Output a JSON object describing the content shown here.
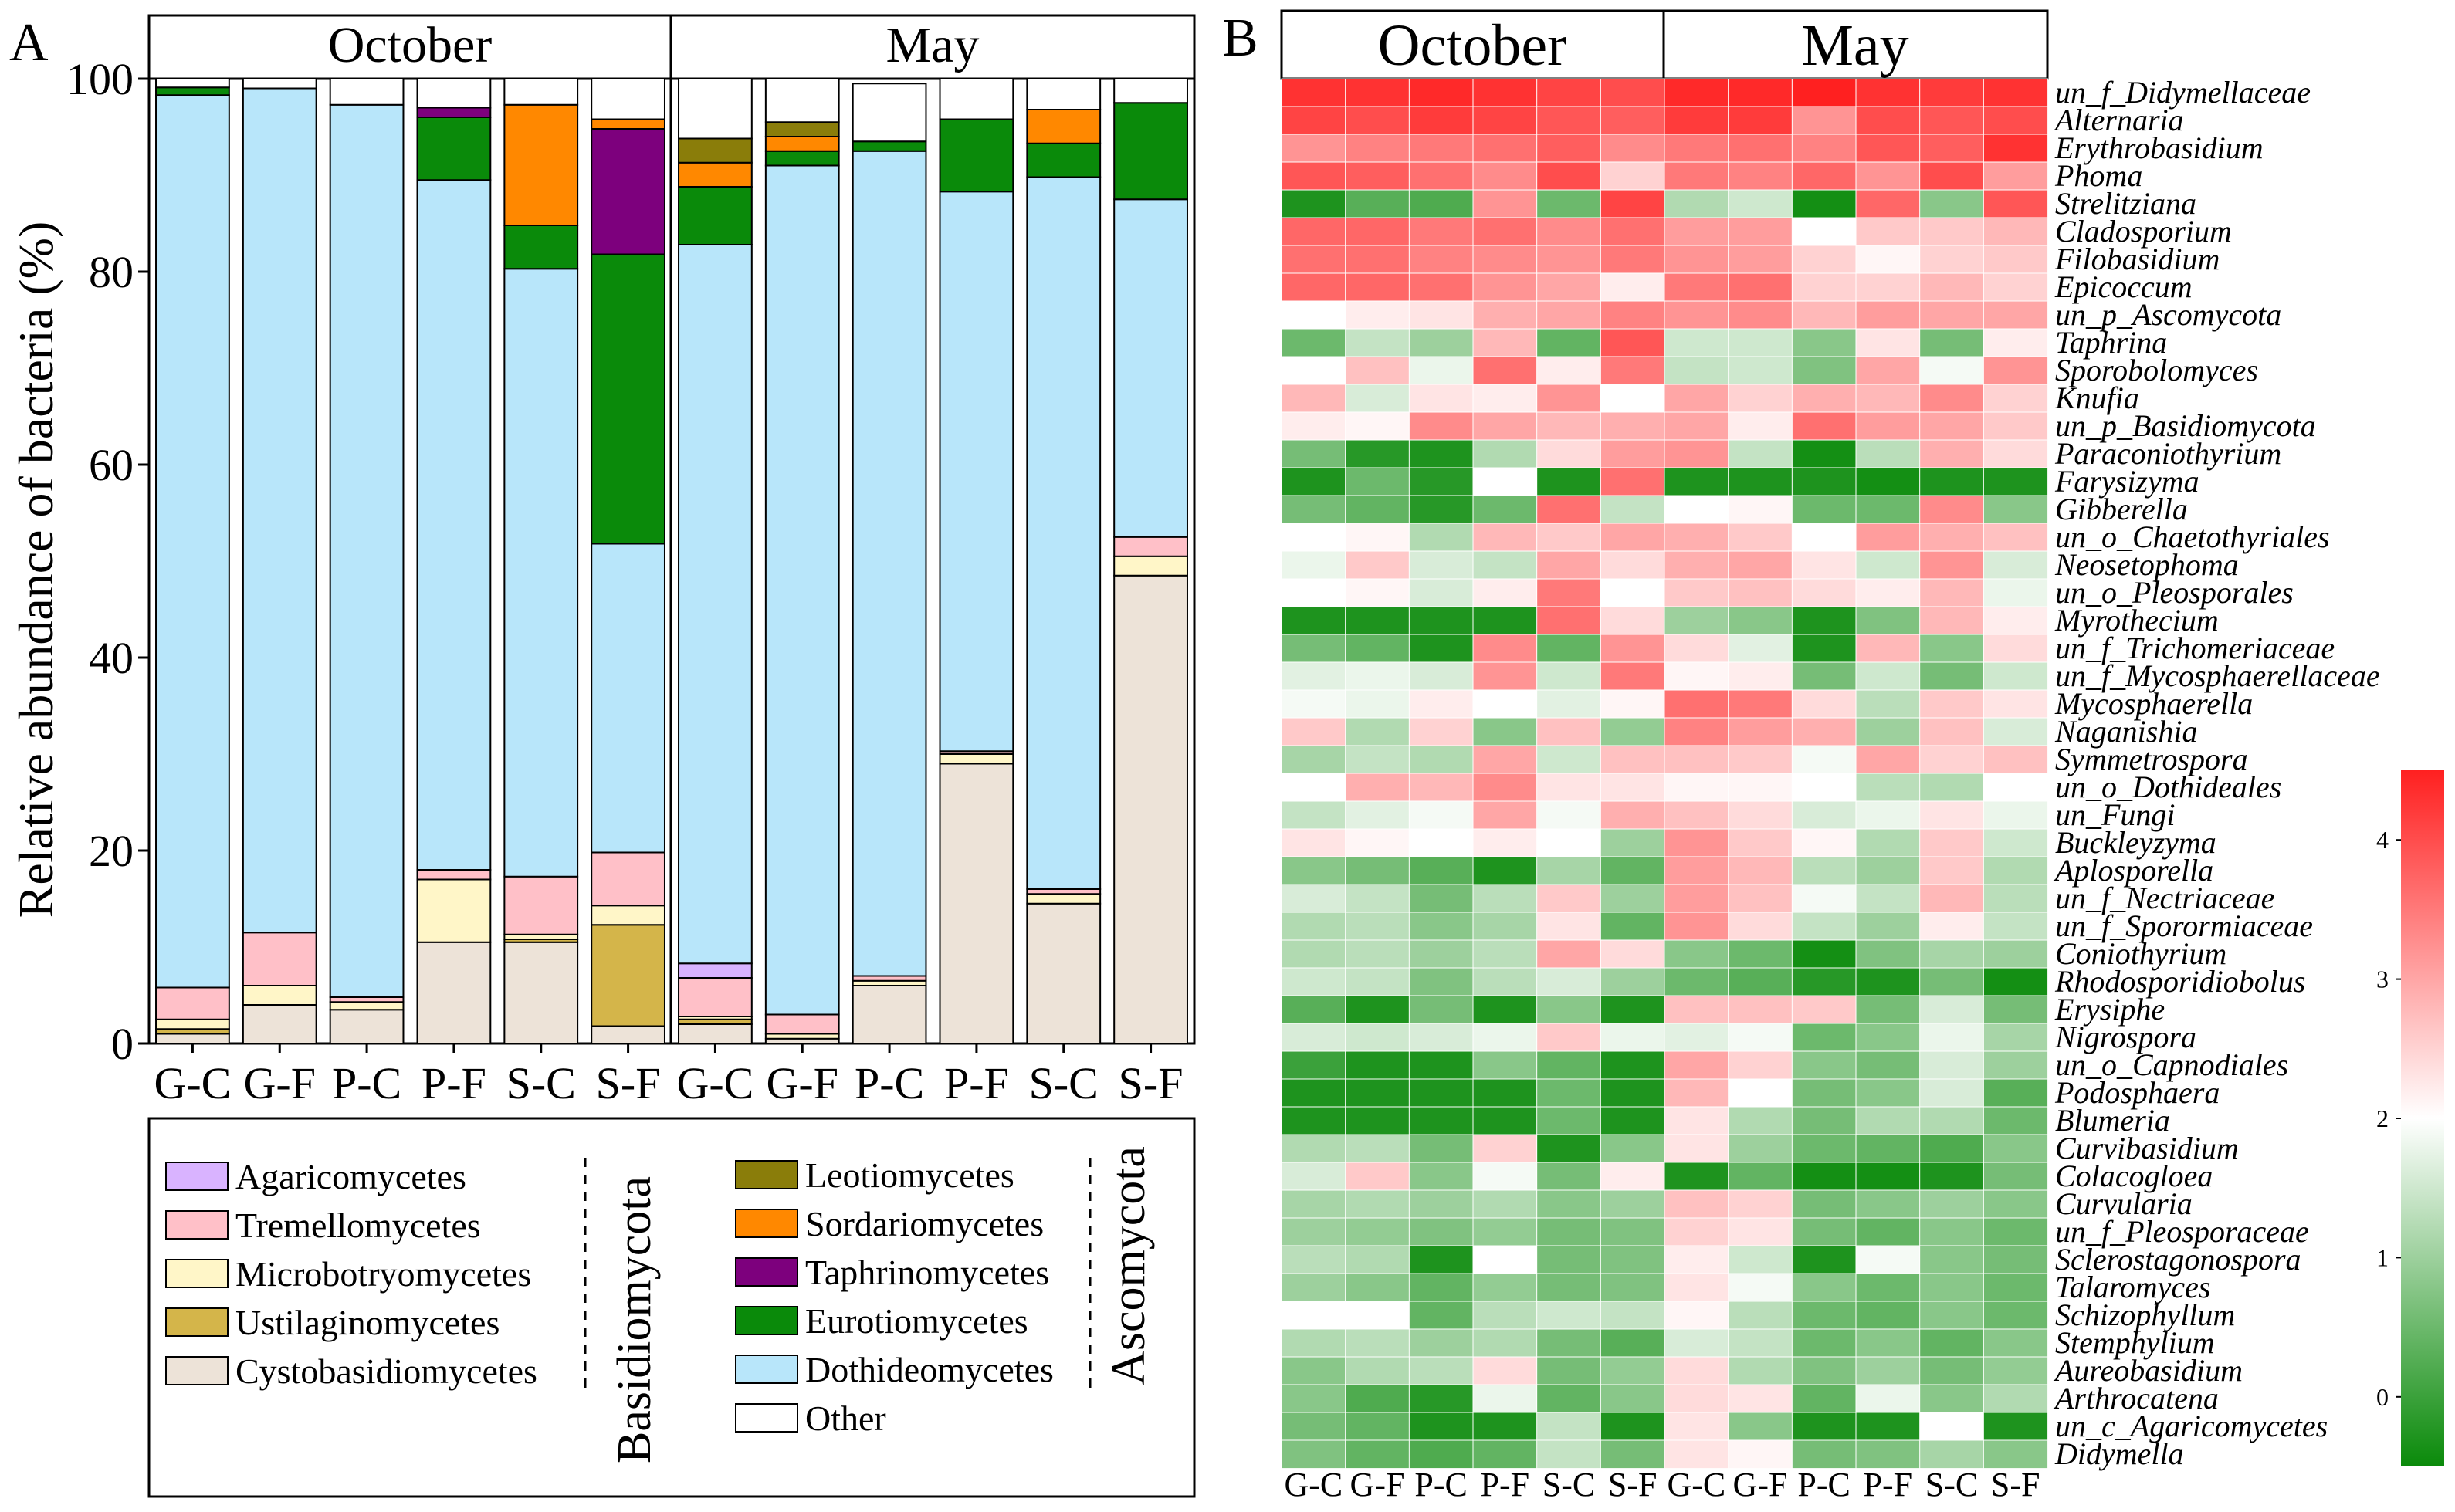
{
  "panel_a": {
    "label": "A",
    "groups": [
      "October",
      "May"
    ],
    "ylabel": "Relative abundance of bacteria (%)",
    "yticks": [
      "0",
      "20",
      "40",
      "60",
      "80",
      "100"
    ],
    "legend": {
      "phylum_labels": [
        "Basidiomycota",
        "Ascomycota"
      ],
      "basidiomycota": [
        {
          "name": "Agaricomycetes",
          "color": "#d9b3ff"
        },
        {
          "name": "Tremellomycetes",
          "color": "#ffc0c8"
        },
        {
          "name": "Microbotryomycetes",
          "color": "#fff6c8"
        },
        {
          "name": "Ustilaginomycetes",
          "color": "#d4b54a"
        },
        {
          "name": "Cystobasidiomycetes",
          "color": "#ede3d8"
        }
      ],
      "ascomycota": [
        {
          "name": "Leotiomycetes",
          "color": "#8a7d0a"
        },
        {
          "name": "Sordariomycetes",
          "color": "#ff8800"
        },
        {
          "name": "Taphrinomycetes",
          "color": "#7d007d"
        },
        {
          "name": "Eurotiomycetes",
          "color": "#0a8a0a"
        },
        {
          "name": "Dothideomycetes",
          "color": "#b8e6fa"
        },
        {
          "name": "Other",
          "color": "#ffffff"
        }
      ]
    }
  },
  "chart_data": [
    {
      "type": "bar",
      "stacked": true,
      "ylim": [
        0,
        100
      ],
      "ylabel": "Relative abundance of bacteria (%)",
      "categories": [
        "G-C",
        "G-F",
        "P-C",
        "P-F",
        "S-C",
        "S-F",
        "G-C",
        "G-F",
        "P-C",
        "P-F",
        "S-C",
        "S-F"
      ],
      "groups": [
        {
          "name": "October",
          "categories": [
            0,
            5
          ]
        },
        {
          "name": "May",
          "categories": [
            6,
            11
          ]
        }
      ],
      "series": [
        {
          "name": "Cystobasidiomycetes",
          "color": "#ede3d8",
          "values": [
            1,
            4,
            3.5,
            10.5,
            10.5,
            1.8,
            2,
            0.5,
            6,
            29,
            14.5,
            48.5
          ]
        },
        {
          "name": "Ustilaginomycetes",
          "color": "#d4b54a",
          "values": [
            0.5,
            0,
            0,
            0,
            0.3,
            10.5,
            0.5,
            0,
            0,
            0,
            0,
            0
          ]
        },
        {
          "name": "Microbotryomycetes",
          "color": "#fff6c8",
          "values": [
            1,
            2,
            0.8,
            6.5,
            0.5,
            2,
            0.3,
            0.5,
            0.5,
            1,
            1,
            2
          ]
        },
        {
          "name": "Tremellomycetes",
          "color": "#ffc0c8",
          "values": [
            3.3,
            5.5,
            0.5,
            1,
            6,
            5.5,
            4,
            2,
            0.5,
            0.3,
            0.5,
            2
          ]
        },
        {
          "name": "Agaricomycetes",
          "color": "#d9b3ff",
          "values": [
            0,
            0,
            0,
            0,
            0,
            0,
            1.5,
            0,
            0,
            0,
            0,
            0
          ]
        },
        {
          "name": "Dothideomycetes",
          "color": "#b8e6fa",
          "values": [
            92.5,
            87.5,
            92.5,
            71.5,
            63,
            32,
            74.5,
            88,
            85.5,
            58,
            73.8,
            35
          ]
        },
        {
          "name": "Eurotiomycetes",
          "color": "#0a8a0a",
          "values": [
            0.8,
            0,
            0,
            6.5,
            4.5,
            30,
            6,
            1.5,
            1,
            7.5,
            3.5,
            10
          ]
        },
        {
          "name": "Taphrinomycetes",
          "color": "#7d007d",
          "values": [
            0,
            0,
            0,
            1,
            0,
            13,
            0,
            0,
            0,
            0,
            0,
            0
          ]
        },
        {
          "name": "Sordariomycetes",
          "color": "#ff8800",
          "values": [
            0,
            0,
            0,
            0,
            12.5,
            1,
            2.5,
            1.5,
            0,
            0,
            3.5,
            0
          ]
        },
        {
          "name": "Leotiomycetes",
          "color": "#8a7d0a",
          "values": [
            0,
            0,
            0,
            0,
            0,
            0,
            2.5,
            1.5,
            0,
            0,
            0,
            0
          ]
        },
        {
          "name": "Other",
          "color": "#ffffff",
          "values": [
            0.9,
            1,
            2.7,
            3,
            2.7,
            4.2,
            6.2,
            4.5,
            6,
            4.2,
            3.2,
            2.5
          ]
        }
      ]
    },
    {
      "type": "heatmap",
      "label": "B",
      "groups": [
        "October",
        "May"
      ],
      "columns": [
        "G-C",
        "G-F",
        "P-C",
        "P-F",
        "S-C",
        "S-F",
        "G-C",
        "G-F",
        "P-C",
        "P-F",
        "S-C",
        "S-F"
      ],
      "rows": [
        "un_f_Didymellaceae",
        "Alternaria",
        "Erythrobasidium",
        "Phoma",
        "Strelitziana",
        "Cladosporium",
        "Filobasidium",
        "Epicoccum",
        "un_p_Ascomycota",
        "Taphrina",
        "Sporobolomyces",
        "Knufia",
        "un_p_Basidiomycota",
        "Paraconiothyrium",
        "Farysizyma",
        "Gibberella",
        "un_o_Chaetothyriales",
        "Neosetophoma",
        "un_o_Pleosporales",
        "Myrothecium",
        "un_f_Trichomeriaceae",
        "un_f_Mycosphaerellaceae",
        "Mycosphaerella",
        "Naganishia",
        "Symmetrospora",
        "un_o_Dothideales",
        "un_Fungi",
        "Buckleyzyma",
        "Aplosporella",
        "un_f_Nectriaceae",
        "un_f_Sporormiaceae",
        "Coniothyrium",
        "Rhodosporidiobolus",
        "Erysiphe",
        "Nigrospora",
        "un_o_Capnodiales",
        "Podosphaera",
        "Blumeria",
        "Curvibasidium",
        "Colacogloea",
        "Curvularia",
        "un_f_Pleosporaceae",
        "Sclerostagonospora",
        "Talaromyces",
        "Schizophyllum",
        "Stemphylium",
        "Aureobasidium",
        "Arthrocatena",
        "un_c_Agaricomycetes",
        "Didymella"
      ],
      "scale": {
        "min": -0.5,
        "max": 4.5,
        "ticks": [
          0,
          1,
          2,
          3,
          4
        ],
        "colors": {
          "low": "#0a8a0a",
          "mid": "#ffffff",
          "high": "#ff2020"
        }
      },
      "values": [
        [
          4.3,
          4.3,
          4.4,
          4.3,
          4.1,
          4.0,
          4.4,
          4.4,
          4.5,
          4.3,
          4.2,
          4.3
        ],
        [
          4.1,
          4.0,
          4.2,
          4.1,
          3.9,
          3.8,
          4.2,
          4.2,
          3.2,
          4.0,
          3.9,
          4.0
        ],
        [
          3.2,
          3.4,
          3.5,
          3.6,
          3.8,
          3.3,
          3.5,
          3.6,
          3.4,
          3.9,
          3.8,
          4.3
        ],
        [
          3.9,
          3.8,
          3.6,
          3.3,
          4.0,
          2.5,
          3.5,
          3.4,
          3.7,
          3.2,
          4.0,
          3.1
        ],
        [
          -0.3,
          0.3,
          0.2,
          3.2,
          0.5,
          4.1,
          1.2,
          1.5,
          -0.4,
          3.7,
          0.8,
          3.9
        ],
        [
          3.7,
          3.7,
          3.5,
          3.6,
          3.3,
          3.6,
          3.1,
          3.1,
          2.0,
          2.6,
          2.6,
          2.8
        ],
        [
          3.6,
          3.6,
          3.4,
          3.3,
          3.2,
          3.5,
          3.2,
          3.1,
          2.5,
          2.1,
          2.5,
          2.6
        ],
        [
          3.7,
          3.7,
          3.6,
          3.2,
          3.0,
          2.2,
          3.5,
          3.6,
          2.5,
          2.5,
          2.8,
          2.5
        ],
        [
          2.0,
          2.2,
          2.3,
          2.9,
          3.0,
          3.4,
          3.2,
          3.3,
          2.8,
          3.1,
          3.0,
          3.0
        ],
        [
          0.5,
          1.4,
          1.0,
          2.8,
          0.4,
          3.9,
          1.5,
          1.5,
          0.8,
          2.3,
          0.6,
          2.2
        ],
        [
          2.0,
          2.7,
          1.8,
          3.6,
          2.2,
          3.5,
          1.4,
          1.5,
          0.7,
          3.0,
          1.9,
          3.2
        ],
        [
          2.8,
          1.6,
          2.3,
          2.2,
          3.2,
          2.0,
          3.0,
          2.5,
          2.9,
          2.8,
          3.3,
          2.5
        ],
        [
          2.2,
          2.1,
          3.3,
          3.0,
          2.8,
          2.9,
          3.0,
          2.2,
          3.6,
          3.1,
          3.0,
          2.6
        ],
        [
          0.6,
          -0.2,
          -0.3,
          1.2,
          2.4,
          3.1,
          3.2,
          1.4,
          -0.4,
          1.3,
          2.9,
          2.4
        ],
        [
          -0.3,
          0.5,
          -0.2,
          2.0,
          -0.3,
          3.6,
          -0.3,
          -0.3,
          -0.3,
          -0.4,
          -0.3,
          -0.3
        ],
        [
          0.6,
          0.4,
          -0.2,
          0.5,
          3.6,
          1.4,
          2.0,
          2.1,
          0.5,
          0.5,
          3.3,
          0.8
        ],
        [
          2.0,
          2.1,
          1.2,
          2.8,
          2.6,
          3.0,
          2.9,
          2.6,
          2.0,
          3.1,
          2.9,
          2.7
        ],
        [
          1.8,
          2.6,
          1.6,
          1.4,
          3.0,
          2.4,
          2.9,
          3.0,
          2.3,
          1.5,
          3.2,
          1.6
        ],
        [
          2.0,
          2.1,
          1.6,
          2.2,
          3.5,
          2.0,
          2.6,
          2.7,
          2.4,
          2.2,
          2.8,
          1.8
        ],
        [
          -0.3,
          -0.3,
          -0.3,
          -0.3,
          3.6,
          2.4,
          1.0,
          0.8,
          -0.3,
          0.7,
          2.8,
          2.2
        ],
        [
          0.6,
          0.4,
          -0.3,
          3.3,
          0.4,
          3.2,
          2.4,
          1.7,
          -0.3,
          2.8,
          0.8,
          2.4
        ],
        [
          1.7,
          1.8,
          1.6,
          3.2,
          1.5,
          3.5,
          2.1,
          2.2,
          0.6,
          1.5,
          0.6,
          1.5
        ],
        [
          1.9,
          1.8,
          2.2,
          2.0,
          1.7,
          2.1,
          3.6,
          3.5,
          2.4,
          1.3,
          2.6,
          2.3
        ],
        [
          2.6,
          1.2,
          2.5,
          0.8,
          2.7,
          0.9,
          3.4,
          3.1,
          2.9,
          1.0,
          2.7,
          1.6
        ],
        [
          1.1,
          1.4,
          1.2,
          3.0,
          1.5,
          2.7,
          2.7,
          2.6,
          1.9,
          3.0,
          2.5,
          2.7
        ],
        [
          2.0,
          2.9,
          2.8,
          3.3,
          2.3,
          2.3,
          2.1,
          2.1,
          2.0,
          1.3,
          1.2,
          2.0
        ],
        [
          1.4,
          1.7,
          1.9,
          3.0,
          1.9,
          2.9,
          2.7,
          2.4,
          1.6,
          1.8,
          2.3,
          1.8
        ],
        [
          2.3,
          2.1,
          2.0,
          2.2,
          2.0,
          1.0,
          3.2,
          2.6,
          2.1,
          1.2,
          2.6,
          1.5
        ],
        [
          0.8,
          0.6,
          0.3,
          -0.3,
          1.1,
          0.4,
          3.1,
          2.8,
          1.3,
          1.0,
          2.6,
          1.2
        ],
        [
          1.6,
          1.4,
          0.6,
          1.3,
          2.6,
          1.0,
          3.1,
          2.7,
          1.9,
          1.4,
          2.8,
          1.3
        ],
        [
          1.2,
          1.3,
          0.8,
          1.1,
          2.3,
          0.4,
          3.2,
          2.4,
          1.4,
          1.0,
          2.2,
          1.4
        ],
        [
          1.2,
          1.3,
          1.0,
          1.3,
          3.0,
          2.4,
          0.8,
          0.5,
          -0.4,
          0.7,
          1.1,
          1.0
        ],
        [
          1.5,
          1.4,
          0.7,
          1.3,
          1.6,
          1.0,
          0.5,
          0.3,
          -0.2,
          -0.3,
          0.6,
          -0.4
        ],
        [
          0.3,
          -0.3,
          0.6,
          -0.3,
          0.8,
          -0.3,
          2.7,
          2.7,
          2.6,
          0.6,
          1.6,
          0.6
        ],
        [
          1.6,
          1.5,
          1.6,
          1.8,
          2.6,
          1.8,
          1.7,
          1.9,
          0.5,
          0.8,
          1.8,
          1.1
        ],
        [
          0.0,
          -0.3,
          -0.3,
          0.8,
          0.4,
          -0.3,
          3.0,
          2.5,
          0.8,
          0.6,
          1.6,
          1.0
        ],
        [
          -0.3,
          -0.3,
          -0.3,
          -0.3,
          0.5,
          -0.3,
          2.8,
          2.0,
          0.6,
          0.8,
          1.6,
          0.3
        ],
        [
          -0.3,
          -0.3,
          -0.3,
          -0.3,
          0.5,
          -0.3,
          2.3,
          1.2,
          0.6,
          1.2,
          1.2,
          0.5
        ],
        [
          1.2,
          1.3,
          0.6,
          2.5,
          -0.3,
          0.8,
          2.3,
          1.0,
          0.5,
          0.4,
          0.2,
          0.8
        ],
        [
          1.6,
          2.6,
          0.8,
          1.9,
          0.6,
          2.2,
          -0.3,
          0.4,
          -0.4,
          -0.4,
          -0.3,
          0.6
        ],
        [
          1.1,
          1.2,
          1.0,
          1.2,
          0.8,
          1.0,
          2.7,
          2.5,
          0.6,
          0.8,
          1.0,
          0.8
        ],
        [
          1.0,
          0.9,
          0.7,
          0.9,
          0.6,
          0.7,
          2.5,
          2.3,
          0.6,
          0.4,
          0.8,
          0.5
        ],
        [
          1.3,
          1.2,
          -0.3,
          2.0,
          0.6,
          0.7,
          2.2,
          1.5,
          -0.3,
          1.9,
          0.8,
          0.6
        ],
        [
          1.0,
          0.8,
          0.4,
          0.9,
          0.6,
          0.7,
          2.3,
          1.9,
          0.8,
          0.5,
          0.8,
          0.5
        ],
        [
          2.0,
          2.0,
          0.4,
          1.3,
          1.5,
          1.4,
          2.1,
          1.3,
          0.5,
          0.4,
          0.8,
          0.5
        ],
        [
          1.2,
          1.3,
          1.0,
          1.2,
          0.6,
          0.3,
          1.6,
          1.4,
          0.5,
          0.8,
          0.4,
          0.8
        ],
        [
          0.8,
          1.2,
          1.3,
          2.4,
          0.6,
          0.9,
          2.4,
          1.2,
          0.7,
          1.0,
          0.6,
          0.9
        ],
        [
          0.8,
          0.2,
          -0.2,
          1.8,
          0.4,
          0.8,
          2.4,
          2.3,
          0.4,
          1.8,
          0.8,
          1.2
        ],
        [
          0.6,
          0.4,
          -0.3,
          -0.3,
          1.4,
          -0.3,
          2.3,
          0.8,
          -0.3,
          -0.3,
          2.0,
          -0.3
        ],
        [
          0.7,
          0.4,
          0.2,
          0.4,
          1.4,
          0.6,
          2.3,
          2.1,
          0.6,
          0.7,
          1.1,
          0.8
        ]
      ]
    }
  ]
}
